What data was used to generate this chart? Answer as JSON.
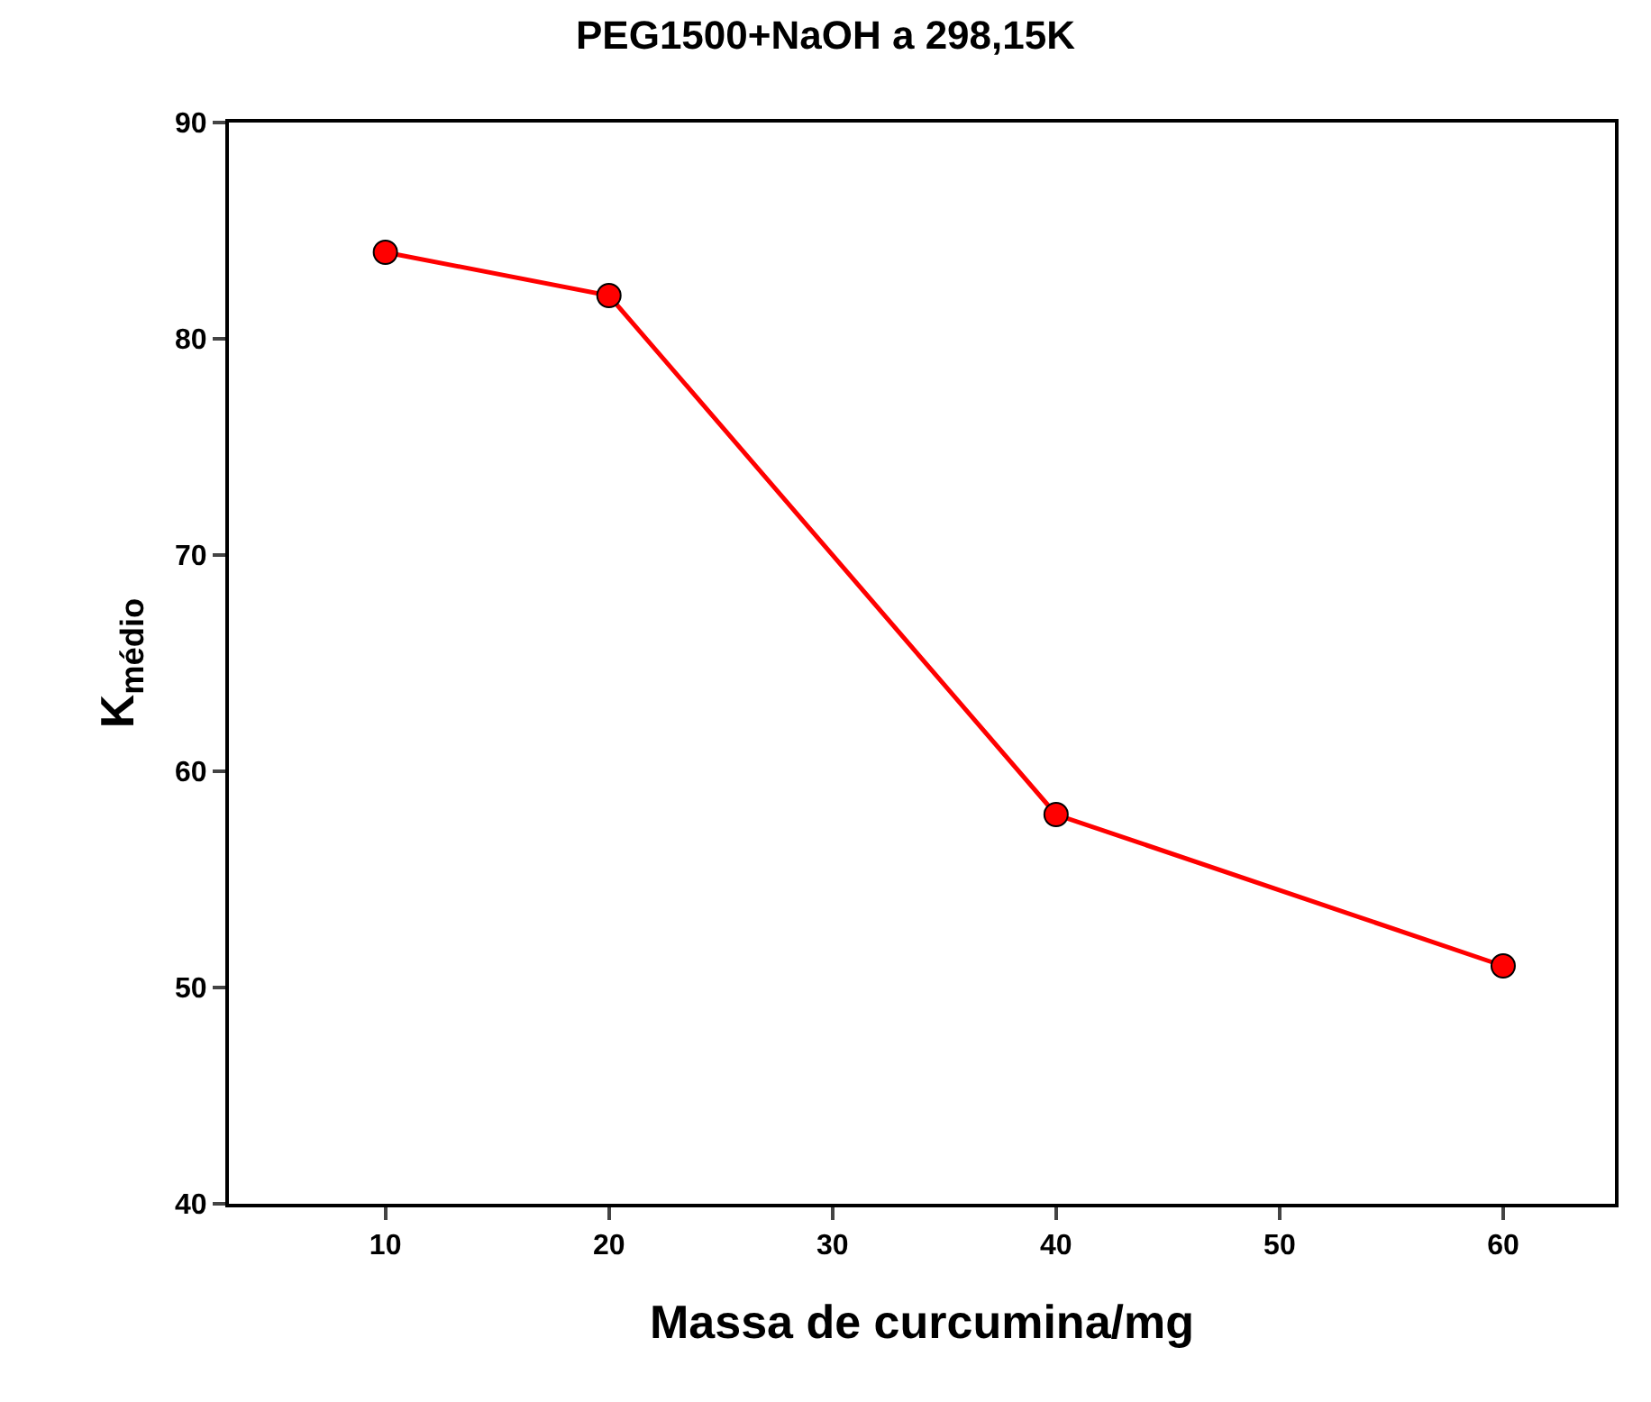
{
  "chart_data": {
    "type": "line",
    "title": "PEG1500+NaOH a 298,15K",
    "xlabel": "Massa de curcumina/mg",
    "ylabel": "K$_{médio}$",
    "x": [
      10,
      20,
      40,
      60
    ],
    "series": [
      {
        "color": "#ff0000",
        "values": [
          84,
          82,
          58,
          51
        ]
      }
    ],
    "xlim": [
      3,
      65
    ],
    "xticks": [
      10,
      20,
      30,
      40,
      50,
      60
    ],
    "ylim": [
      40,
      90
    ],
    "yticks": [
      40,
      50,
      60,
      70,
      80,
      90
    ],
    "legend": false,
    "marker": "circle",
    "line_style": "solid"
  }
}
